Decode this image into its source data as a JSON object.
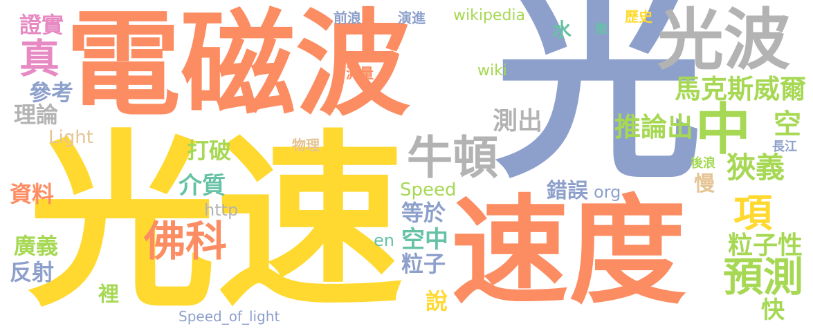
{
  "palette": {
    "orange": "#fc8d62",
    "blue": "#8da0cb",
    "yellow": "#ffd92f",
    "gray": "#b3b3b3",
    "green": "#a6d854",
    "teal": "#66c2a5",
    "pink": "#e78ac3",
    "tan": "#e5c494"
  },
  "words": [
    {
      "text": "電磁波",
      "color": "#fc8d62"
    },
    {
      "text": "光",
      "color": "#8da0cb"
    },
    {
      "text": "光速",
      "color": "#ffd92f"
    },
    {
      "text": "速度",
      "color": "#fc8d62"
    },
    {
      "text": "光波",
      "color": "#b3b3b3"
    },
    {
      "text": "中",
      "color": "#a6d854"
    },
    {
      "text": "牛頓",
      "color": "#b3b3b3"
    },
    {
      "text": "佛科",
      "color": "#fc8d62"
    },
    {
      "text": "預測",
      "color": "#a6d854"
    },
    {
      "text": "項",
      "color": "#ffd92f"
    },
    {
      "text": "馬克斯威爾",
      "color": "#a6d854"
    },
    {
      "text": "推論出",
      "color": "#a6d854"
    },
    {
      "text": "測出",
      "color": "#b3b3b3"
    },
    {
      "text": "空",
      "color": "#a6d854"
    },
    {
      "text": "狹義",
      "color": "#a6d854"
    },
    {
      "text": "慢",
      "color": "#e5c494"
    },
    {
      "text": "粒子性",
      "color": "#a6d854"
    },
    {
      "text": "快",
      "color": "#a6d854"
    },
    {
      "text": "真",
      "color": "#e78ac3"
    },
    {
      "text": "證實",
      "color": "#e78ac3"
    },
    {
      "text": "參考",
      "color": "#8da0cb"
    },
    {
      "text": "理論",
      "color": "#b3b3b3"
    },
    {
      "text": "Light",
      "color": "#e5c494"
    },
    {
      "text": "資料",
      "color": "#fc8d62"
    },
    {
      "text": "廣義",
      "color": "#a6d854"
    },
    {
      "text": "反射",
      "color": "#8da0cb"
    },
    {
      "text": "裡",
      "color": "#a6d854"
    },
    {
      "text": "打破",
      "color": "#a6d854"
    },
    {
      "text": "介質",
      "color": "#66c2a5"
    },
    {
      "text": "http",
      "color": "#b3b3b3"
    },
    {
      "text": "Speed",
      "color": "#a6d854"
    },
    {
      "text": "錯誤",
      "color": "#8da0cb"
    },
    {
      "text": "org",
      "color": "#8da0cb"
    },
    {
      "text": "等於",
      "color": "#8da0cb"
    },
    {
      "text": "空中",
      "color": "#66c2a5"
    },
    {
      "text": "粒子",
      "color": "#8da0cb"
    },
    {
      "text": "en",
      "color": "#66c2a5"
    },
    {
      "text": "說",
      "color": "#ffd92f"
    },
    {
      "text": "wikipedia",
      "color": "#a6d854"
    },
    {
      "text": "wiki",
      "color": "#a6d854"
    },
    {
      "text": "水",
      "color": "#66c2a5"
    },
    {
      "text": "推",
      "color": "#66c2a5"
    },
    {
      "text": "歷史",
      "color": "#ffd92f"
    },
    {
      "text": "前浪",
      "color": "#8da0cb"
    },
    {
      "text": "演進",
      "color": "#8da0cb"
    },
    {
      "text": "測量",
      "color": "#fc8d62"
    },
    {
      "text": "物理",
      "color": "#e5c494"
    },
    {
      "text": "長江",
      "color": "#8da0cb"
    },
    {
      "text": "後浪",
      "color": "#a6d854"
    },
    {
      "text": "Speed_of_light",
      "color": "#8da0cb"
    }
  ]
}
